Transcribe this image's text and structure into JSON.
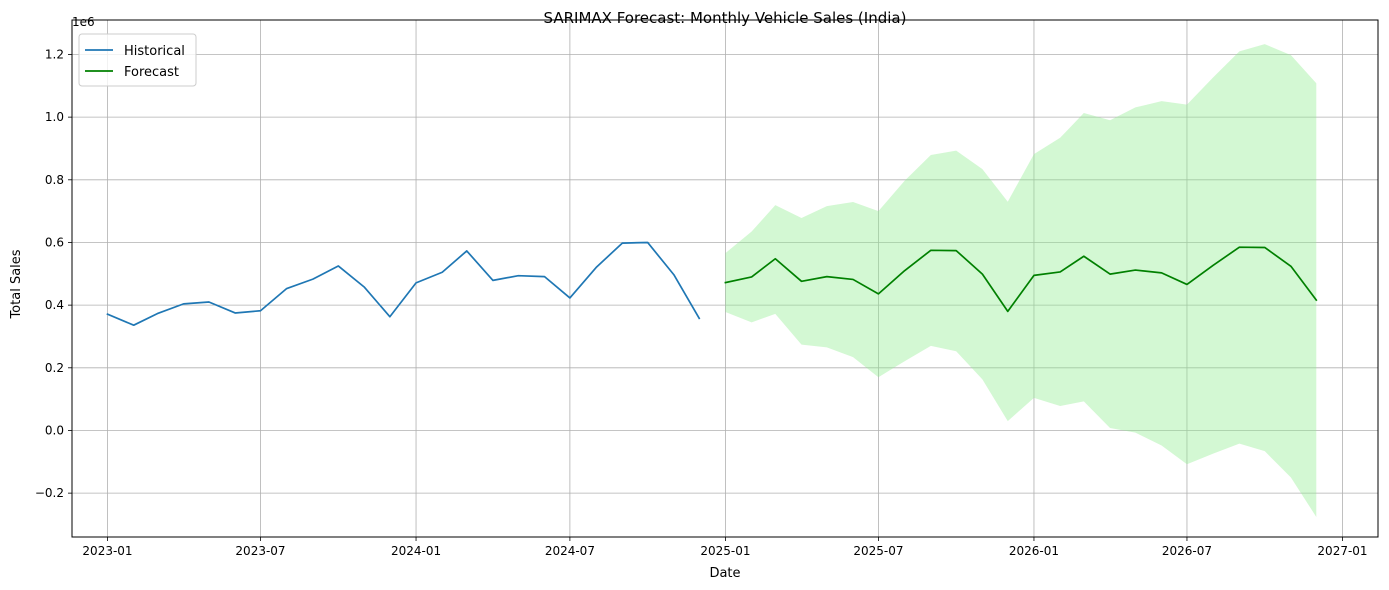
{
  "chart_data": {
    "type": "line",
    "title": "SARIMAX Forecast: Monthly Vehicle Sales (India)",
    "xlabel": "Date",
    "ylabel": "Total Sales",
    "y_offset_text": "1e6",
    "y_scale_multiplier": 1000000,
    "x_axis_type": "date",
    "xlim": [
      "2022-11-20",
      "2027-02-12"
    ],
    "ylim": [
      -340000,
      1310000
    ],
    "x_ticks": [
      "2023-01",
      "2023-07",
      "2024-01",
      "2024-07",
      "2025-01",
      "2025-07",
      "2026-01",
      "2026-07",
      "2027-01"
    ],
    "y_ticks": [
      -0.2,
      0.0,
      0.2,
      0.4,
      0.6,
      0.8,
      1.0,
      1.2
    ],
    "y_tick_labels": [
      "−0.2",
      "0.0",
      "0.2",
      "0.4",
      "0.6",
      "0.8",
      "1.0",
      "1.2"
    ],
    "grid": true,
    "legend_position": "top-left",
    "series": [
      {
        "name": "Historical",
        "color": "#1f77b4",
        "x": [
          "2023-01-01",
          "2023-02-01",
          "2023-03-01",
          "2023-04-01",
          "2023-05-01",
          "2023-06-01",
          "2023-07-01",
          "2023-08-01",
          "2023-09-01",
          "2023-10-01",
          "2023-11-01",
          "2023-12-01",
          "2024-01-01",
          "2024-02-01",
          "2024-03-01",
          "2024-04-01",
          "2024-05-01",
          "2024-06-01",
          "2024-07-01",
          "2024-08-01",
          "2024-09-01",
          "2024-10-01",
          "2024-11-01",
          "2024-12-01"
        ],
        "values": [
          371000,
          336000,
          373000,
          404000,
          410000,
          375000,
          382000,
          453000,
          483000,
          525000,
          457000,
          363000,
          471000,
          505000,
          573000,
          479000,
          494000,
          491000,
          423000,
          520000,
          598000,
          600000,
          497000,
          358000
        ]
      },
      {
        "name": "Forecast",
        "color": "#008000",
        "x": [
          "2025-01-01",
          "2025-02-01",
          "2025-03-01",
          "2025-04-01",
          "2025-05-01",
          "2025-06-01",
          "2025-07-01",
          "2025-08-01",
          "2025-09-01",
          "2025-10-01",
          "2025-11-01",
          "2025-12-01",
          "2026-01-01",
          "2026-02-01",
          "2026-03-01",
          "2026-04-01",
          "2026-05-01",
          "2026-06-01",
          "2026-07-01",
          "2026-08-01",
          "2026-09-01",
          "2026-10-01",
          "2026-11-01",
          "2026-12-01"
        ],
        "values": [
          472000,
          490000,
          548000,
          476000,
          491000,
          482000,
          436000,
          510000,
          575000,
          574000,
          499000,
          380000,
          495000,
          506000,
          556000,
          499000,
          512000,
          503000,
          466000,
          527000,
          585000,
          584000,
          524000,
          416000
        ]
      }
    ],
    "confidence_band": {
      "color": "#90ee90",
      "opacity": 0.4,
      "x": [
        "2025-01-01",
        "2025-02-01",
        "2025-03-01",
        "2025-04-01",
        "2025-05-01",
        "2025-06-01",
        "2025-07-01",
        "2025-08-01",
        "2025-09-01",
        "2025-10-01",
        "2025-11-01",
        "2025-12-01",
        "2026-01-01",
        "2026-02-01",
        "2026-03-01",
        "2026-04-01",
        "2026-05-01",
        "2026-06-01",
        "2026-07-01",
        "2026-08-01",
        "2026-09-01",
        "2026-10-01",
        "2026-11-01",
        "2026-12-01"
      ],
      "lower": [
        378000,
        345000,
        372000,
        274000,
        265000,
        234000,
        170000,
        221000,
        270000,
        253000,
        163000,
        30000,
        104000,
        78000,
        93000,
        8000,
        -7000,
        -48000,
        -108000,
        -74000,
        -42000,
        -66000,
        -150000,
        -276000
      ],
      "upper": [
        566000,
        635000,
        719000,
        678000,
        716000,
        729000,
        700000,
        797000,
        879000,
        893000,
        834000,
        730000,
        882000,
        934000,
        1013000,
        990000,
        1031000,
        1051000,
        1040000,
        1127000,
        1210000,
        1233000,
        1198000,
        1108000
      ]
    }
  }
}
